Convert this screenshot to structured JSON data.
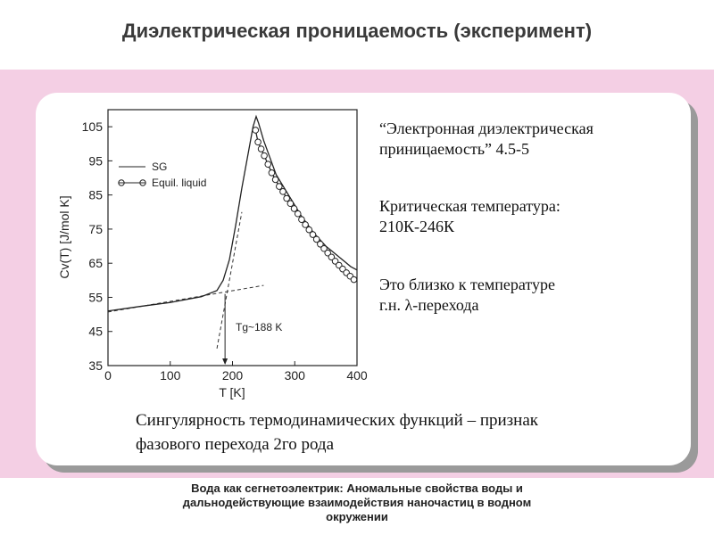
{
  "slide": {
    "title": "Диэлектрическая проницаемость (эксперимент)",
    "notes": [
      {
        "lines": [
          "“Электронная диэлектрическая",
          "приницаемость” 4.5-5"
        ]
      },
      {
        "lines": [
          "Критическая температура:",
          "210К-246К"
        ]
      },
      {
        "lines": [
          "Это близко к температуре",
          "г.н. λ-перехода"
        ]
      }
    ],
    "conclusion": [
      "Сингулярность термодинамических функций – признак",
      "фазового перехода 2го рода"
    ],
    "footer": [
      "Вода как сегнетоэлектрик: Аномальные свойства воды и",
      "дальнодействующие взаимодействия наночастиц в водном",
      "окружении"
    ]
  },
  "colors": {
    "band": "#f4cfe4",
    "card_shadow": "#9a9a9a",
    "ink": "#111111"
  },
  "chart_data": {
    "type": "line",
    "xlabel": "T [K]",
    "ylabel": "Cv(T) [J/mol K]",
    "xlim": [
      0,
      400
    ],
    "ylim": [
      35,
      110
    ],
    "xticks": [
      0,
      100,
      200,
      300,
      400
    ],
    "yticks": [
      35,
      45,
      55,
      65,
      75,
      85,
      95,
      105
    ],
    "legend_position": "top-left",
    "annotation": "Tg~188 K",
    "annotation_marker_x": 188,
    "series": [
      {
        "name": "SG",
        "style": "solid",
        "points": [
          [
            0,
            51
          ],
          [
            50,
            52.3
          ],
          [
            100,
            53.5
          ],
          [
            150,
            55.2
          ],
          [
            175,
            57
          ],
          [
            185,
            60
          ],
          [
            195,
            66
          ],
          [
            205,
            76
          ],
          [
            215,
            87
          ],
          [
            225,
            97
          ],
          [
            233,
            105
          ],
          [
            238,
            108
          ],
          [
            242,
            106
          ],
          [
            250,
            101
          ],
          [
            260,
            96
          ],
          [
            270,
            91
          ],
          [
            280,
            88
          ],
          [
            290,
            85
          ],
          [
            300,
            82
          ],
          [
            310,
            79
          ],
          [
            320,
            76.5
          ],
          [
            330,
            74
          ],
          [
            340,
            72
          ],
          [
            350,
            70
          ],
          [
            360,
            68.5
          ],
          [
            370,
            67
          ],
          [
            380,
            65.5
          ],
          [
            390,
            64
          ],
          [
            400,
            63
          ]
        ]
      },
      {
        "name": "Equil. liquid",
        "style": "solid-with-circles",
        "points": [
          [
            237,
            104
          ],
          [
            241,
            100.5
          ],
          [
            246,
            98.5
          ],
          [
            251,
            96.5
          ],
          [
            257,
            94
          ],
          [
            263,
            91.5
          ],
          [
            269,
            89.5
          ],
          [
            275,
            87.5
          ],
          [
            281,
            86
          ],
          [
            287,
            84
          ],
          [
            293,
            82.5
          ],
          [
            299,
            81
          ],
          [
            305,
            79.5
          ],
          [
            311,
            77.8
          ],
          [
            317,
            76.3
          ],
          [
            323,
            74.8
          ],
          [
            329,
            73.4
          ],
          [
            335,
            72
          ],
          [
            341,
            70.6
          ],
          [
            347,
            69.3
          ],
          [
            353,
            68
          ],
          [
            359,
            66.8
          ],
          [
            365,
            65.6
          ],
          [
            371,
            64.4
          ],
          [
            377,
            63.3
          ],
          [
            383,
            62.2
          ],
          [
            389,
            61.2
          ],
          [
            395,
            60.2
          ]
        ]
      }
    ],
    "fit_lines": [
      {
        "name": "",
        "style": "dashed",
        "points": [
          [
            0,
            50.7
          ],
          [
            250,
            58.5
          ]
        ]
      },
      {
        "name": "",
        "style": "dashed",
        "points": [
          [
            175,
            40
          ],
          [
            215,
            80
          ]
        ]
      }
    ]
  }
}
